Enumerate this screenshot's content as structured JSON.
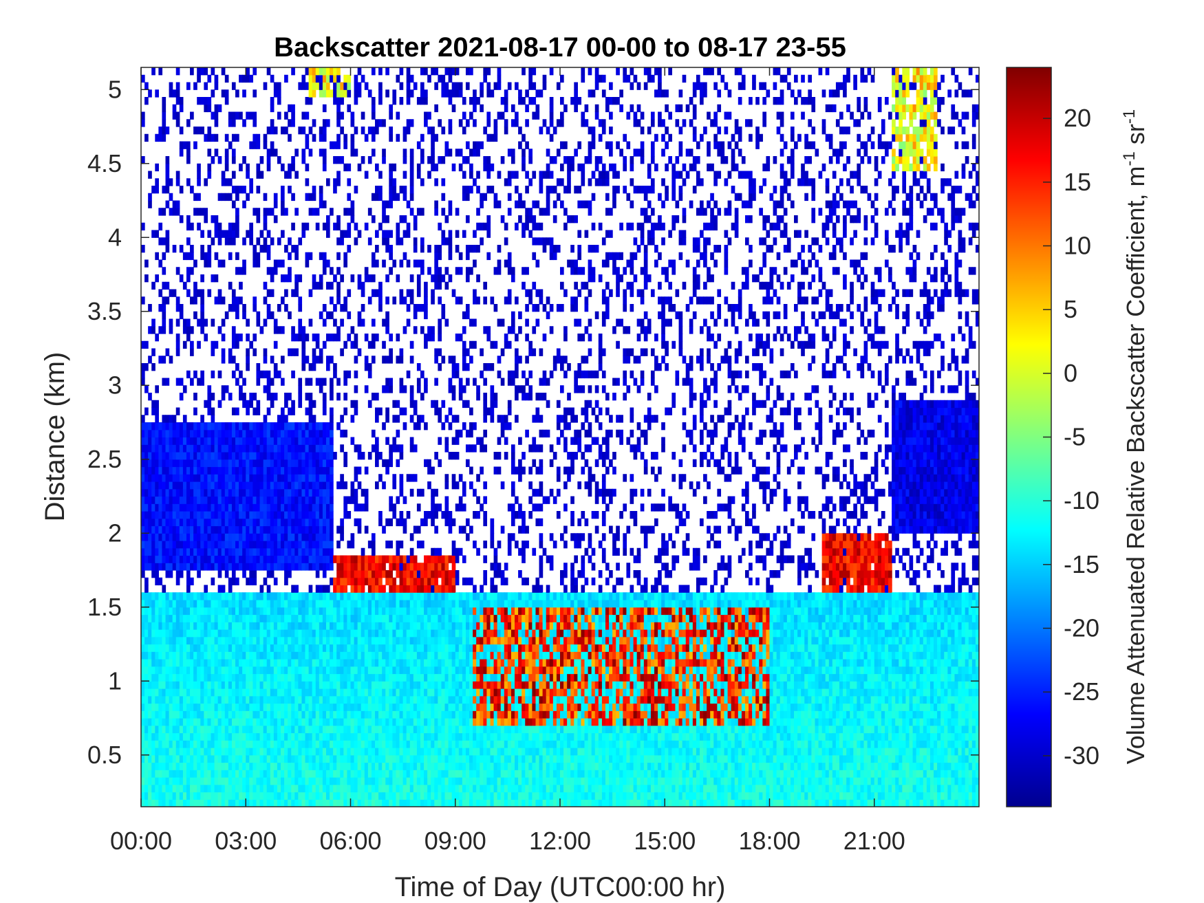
{
  "chart_data": {
    "type": "heatmap",
    "title": "Backscatter 2021-08-17 00-00 to 08-17 23-55",
    "xlabel": "Time of Day (UTC00:00 hr)",
    "ylabel": "Distance (km)",
    "colorbar_label": "Volume Attenuated Relative Backscatter Coefficient, m",
    "colorbar_label_units": {
      "sup1": "-1",
      "mid": " sr",
      "sup2": "-1"
    },
    "colormap": "jet",
    "colors": {
      "low": "#00008F",
      "mid": "#80FF80",
      "high": "#800000"
    },
    "xlim_hours": [
      0,
      24
    ],
    "ylim_km": [
      0.15,
      5.15
    ],
    "clim": [
      -34,
      24
    ],
    "x_ticks": [
      {
        "value": 0,
        "label": "00:00"
      },
      {
        "value": 3,
        "label": "03:00"
      },
      {
        "value": 6,
        "label": "06:00"
      },
      {
        "value": 9,
        "label": "09:00"
      },
      {
        "value": 12,
        "label": "12:00"
      },
      {
        "value": 15,
        "label": "15:00"
      },
      {
        "value": 18,
        "label": "18:00"
      },
      {
        "value": 21,
        "label": "21:00"
      }
    ],
    "y_ticks": [
      {
        "value": 0.5,
        "label": "0.5"
      },
      {
        "value": 1,
        "label": "1"
      },
      {
        "value": 1.5,
        "label": "1.5"
      },
      {
        "value": 2,
        "label": "2"
      },
      {
        "value": 2.5,
        "label": "2.5"
      },
      {
        "value": 3,
        "label": "3"
      },
      {
        "value": 3.5,
        "label": "3.5"
      },
      {
        "value": 4,
        "label": "4"
      },
      {
        "value": 4.5,
        "label": "4.5"
      },
      {
        "value": 5,
        "label": "5"
      }
    ],
    "colorbar_ticks": [
      {
        "value": 20,
        "label": "20"
      },
      {
        "value": 15,
        "label": "15"
      },
      {
        "value": 10,
        "label": "10"
      },
      {
        "value": 5,
        "label": "5"
      },
      {
        "value": 0,
        "label": "0"
      },
      {
        "value": -5,
        "label": "-5"
      },
      {
        "value": -10,
        "label": "-10"
      },
      {
        "value": -15,
        "label": "-15"
      },
      {
        "value": -20,
        "label": "-20"
      },
      {
        "value": -25,
        "label": "-25"
      },
      {
        "value": -30,
        "label": "-30"
      }
    ],
    "features": [
      {
        "name": "boundary-layer",
        "hours": [
          0,
          24
        ],
        "km": [
          0.15,
          1.6
        ],
        "value": -12
      },
      {
        "name": "residual-layer-night",
        "hours": [
          0,
          5.5
        ],
        "km": [
          1.75,
          2.75
        ],
        "value": -26
      },
      {
        "name": "residual-layer-evening",
        "hours": [
          21.5,
          24
        ],
        "km": [
          2.0,
          2.9
        ],
        "value": -28
      },
      {
        "name": "cloud-layer-morning",
        "hours": [
          5.5,
          9.0
        ],
        "km": [
          1.6,
          1.85
        ],
        "value": 17
      },
      {
        "name": "cumulus-layer-midday",
        "hours": [
          9.5,
          18.0
        ],
        "km": [
          0.7,
          1.5
        ],
        "value": 15
      },
      {
        "name": "cloud-layer-evening",
        "hours": [
          19.5,
          21.5
        ],
        "km": [
          1.6,
          2.0
        ],
        "value": 17
      },
      {
        "name": "high-cloud-early",
        "hours": [
          4.8,
          6.0
        ],
        "km": [
          4.95,
          5.15
        ],
        "value": 2
      },
      {
        "name": "high-cloud-late",
        "hours": [
          21.5,
          22.8
        ],
        "km": [
          4.45,
          5.15
        ],
        "value": 2
      }
    ]
  }
}
